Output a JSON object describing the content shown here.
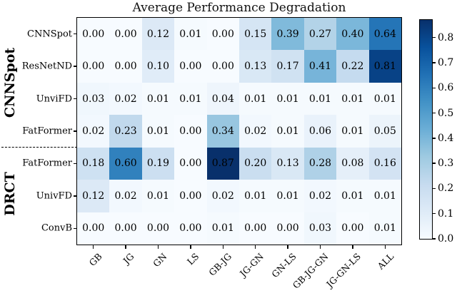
{
  "chart_data": {
    "type": "heatmap",
    "title": "Average Performance Degradation",
    "colormap": "Blues",
    "vmin": 0.0,
    "vmax": 0.87,
    "columns": [
      "GB",
      "JG",
      "GN",
      "LS",
      "GB-JG",
      "JG-GN",
      "GN-LS",
      "GB-JG-GN",
      "JG-GN-LS",
      "ALL"
    ],
    "rows": [
      "CNNSpot",
      "ResNetND",
      "UnviFD",
      "FatFormer",
      "FatFormer",
      "UnivFD",
      "ConvB"
    ],
    "row_groups": [
      {
        "label": "CNNSpot",
        "row_start": 0,
        "row_end": 3
      },
      {
        "label": "DRCT",
        "row_start": 4,
        "row_end": 6
      }
    ],
    "values": [
      [
        0.0,
        0.0,
        0.12,
        0.01,
        0.0,
        0.15,
        0.39,
        0.27,
        0.4,
        0.64
      ],
      [
        0.0,
        0.0,
        0.1,
        0.0,
        0.0,
        0.13,
        0.17,
        0.41,
        0.22,
        0.81
      ],
      [
        0.03,
        0.02,
        0.01,
        0.01,
        0.04,
        0.01,
        0.01,
        0.01,
        0.01,
        0.01
      ],
      [
        0.02,
        0.23,
        0.01,
        0.0,
        0.34,
        0.02,
        0.01,
        0.06,
        0.01,
        0.05
      ],
      [
        0.18,
        0.6,
        0.19,
        0.0,
        0.87,
        0.2,
        0.13,
        0.28,
        0.08,
        0.16
      ],
      [
        0.12,
        0.02,
        0.01,
        0.0,
        0.02,
        0.01,
        0.01,
        0.02,
        0.01,
        0.01
      ],
      [
        0.0,
        0.0,
        0.0,
        0.0,
        0.01,
        0.0,
        0.0,
        0.03,
        0.0,
        0.01
      ]
    ],
    "value_decimals": 2,
    "annotation_color": "#000000",
    "axes_edge_color": "#000000",
    "colorbar": {
      "tick_labels": [
        "0.0",
        "0.1",
        "0.2",
        "0.3",
        "0.4",
        "0.5",
        "0.6",
        "0.7",
        "0.8"
      ],
      "tick_values": [
        0.0,
        0.1,
        0.2,
        0.3,
        0.4,
        0.5,
        0.6,
        0.7,
        0.8
      ],
      "position": "right"
    },
    "colormap_anchors": [
      "#f7fbff",
      "#deebf7",
      "#c6dbef",
      "#9ecae1",
      "#6baed6",
      "#4292c6",
      "#2171b5",
      "#08519c",
      "#08306b"
    ],
    "grid": false,
    "legend": null
  }
}
